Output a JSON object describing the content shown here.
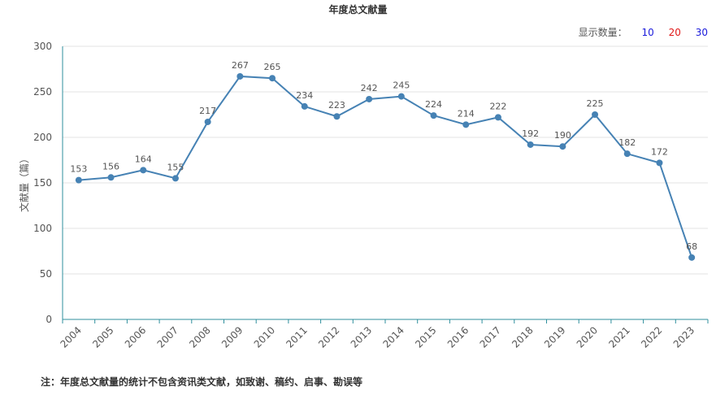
{
  "header": {
    "title": "年度总文献量"
  },
  "count_selector": {
    "label": "显示数量：",
    "options": [
      {
        "label": "10",
        "color": "#1a1adb"
      },
      {
        "label": "20",
        "color": "#e01818"
      },
      {
        "label": "30",
        "color": "#1a1adb"
      }
    ]
  },
  "footnote": "注：年度总文献量的统计不包含资讯类文献，如致谢、稿约、启事、勘误等",
  "chart_data": {
    "type": "line",
    "title": "年度总文献量",
    "xlabel": "",
    "ylabel": "文献量（篇）",
    "categories": [
      "2004",
      "2005",
      "2006",
      "2007",
      "2008",
      "2009",
      "2010",
      "2011",
      "2012",
      "2013",
      "2014",
      "2015",
      "2016",
      "2017",
      "2018",
      "2019",
      "2020",
      "2021",
      "2022",
      "2023"
    ],
    "series": [
      {
        "values": [
          153,
          156,
          164,
          155,
          217,
          267,
          265,
          234,
          223,
          242,
          245,
          224,
          214,
          222,
          192,
          190,
          225,
          182,
          172,
          68
        ]
      }
    ],
    "ylim": [
      0,
      300
    ],
    "yticks": [
      0,
      50,
      100,
      150,
      200,
      250,
      300
    ],
    "grid": true,
    "line_color": "#4682b4",
    "axis_color": "#2f8f9d"
  }
}
